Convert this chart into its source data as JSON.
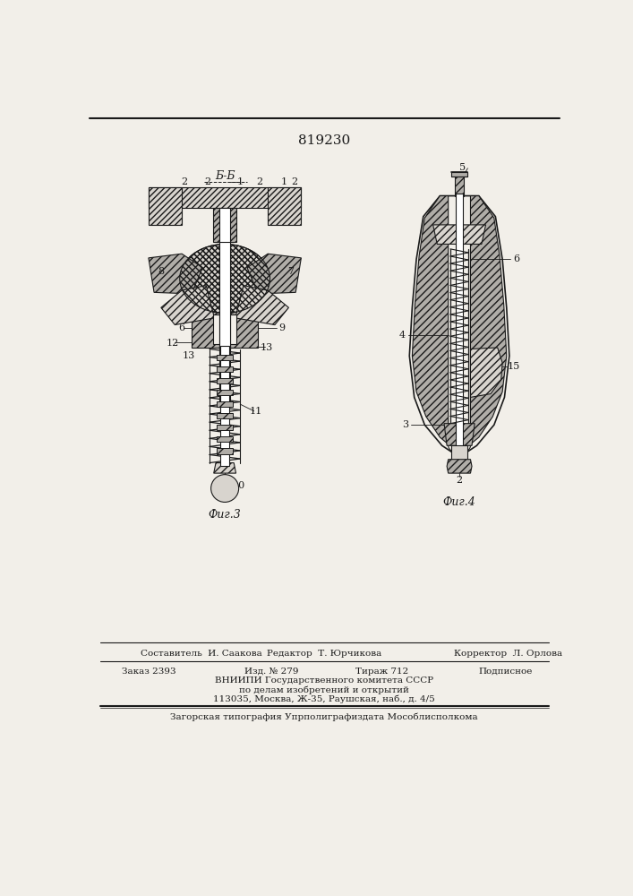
{
  "title": "819230",
  "bg_color": "#f2efe9",
  "line_color": "#1a1a1a",
  "footer_line1_left": "Составитель  И. Саакова",
  "footer_line1_mid": "Редактор  Т. Юрчикова",
  "footer_line1_right": "Корректор  Л. Орлова",
  "footer_line2_left": "Заказ 2393",
  "footer_line2_mid1": "Изд. № 279",
  "footer_line2_mid2": "Тираж 712",
  "footer_line2_right": "Подписное",
  "footer_line3": "ВНИИПИ Государственного комитета СССР",
  "footer_line4": "по делам изобретений и открытий",
  "footer_line5": "113035, Москва, Ж-35, Раушская, наб., д. 4/5",
  "footer_line6": "Загорская типография Упрполиграфиздата Мособлисполкома",
  "fig3_label": "Фиг.3",
  "fig4_label": "Фиг.4",
  "section_label": "Б-Б"
}
